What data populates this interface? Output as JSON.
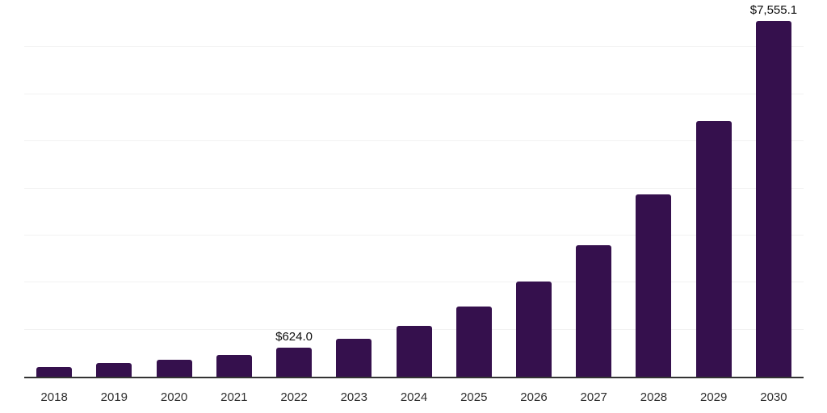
{
  "chart_data": {
    "type": "bar",
    "title": "",
    "xlabel": "",
    "ylabel": "",
    "categories": [
      "2018",
      "2019",
      "2020",
      "2021",
      "2022",
      "2023",
      "2024",
      "2025",
      "2026",
      "2027",
      "2028",
      "2029",
      "2030"
    ],
    "values": [
      210,
      285,
      360,
      465,
      624.0,
      810,
      1085,
      1485,
      2025,
      2785,
      3870,
      5425,
      7555.1
    ],
    "value_labels": {
      "2022": "$624.0",
      "2030": "$7,555.1"
    },
    "ylim": [
      0,
      8000
    ],
    "gridline_step": 1000,
    "grid": "horizontal",
    "legend_position": "none",
    "y_axis_tick_labels": "none",
    "colors": {
      "bar": "#35104d",
      "gridline": "#f2f2f2",
      "axis_line": "#333333",
      "tick_label": "#2e2e2e",
      "value_label": "#0d0d0d",
      "background": "#ffffff"
    }
  }
}
